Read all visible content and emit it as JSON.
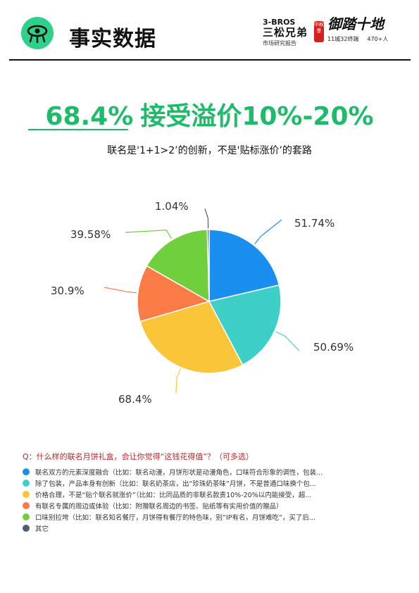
{
  "header": {
    "title": "事实数据",
    "logo_caption": "3BROS LOGO",
    "brand1_line1": "3-BROS",
    "brand1_line2": "三松兄弟",
    "brand1_sub": "市场研究报告",
    "seal_text": "中秋季",
    "brand2_name": "御踏十地",
    "brand2_sub1": "11城32终端",
    "brand2_sub2": "470+人"
  },
  "headline": {
    "number": "68.4%",
    "text": "接受溢价10%-20%"
  },
  "subhead": "联名是'1+1>2’的创新，不是'贴标涨价’的套路",
  "chart_data": {
    "type": "pie",
    "question": "Q：什么样的联名月饼礼盒，会让你觉得“这钱花得值”？（可多选）",
    "series": [
      {
        "name": "联名双方的元素深度融合（比如：联名动漫，月饼形状是动漫角色，口味符合形象的调性，包装...",
        "value": 51.74,
        "label": "51.74%",
        "color": "#1a8ff0"
      },
      {
        "name": "除了包装，产品本身有创新（比如：联名奶茶店，出“珍珠奶茶味”月饼，不是普通口味换个包...",
        "value": 50.69,
        "label": "50.69%",
        "color": "#3ed0c8"
      },
      {
        "name": "价格合理，不是“贴个联名就涨价”（比如：比同品质的非联名款贵10%-20%以内能接受，超...",
        "value": 68.4,
        "label": "68.4%",
        "color": "#fbc53a"
      },
      {
        "name": "有联名专属的周边或体验（比如：附赠联名周边的书签、贴纸等有实用价值的赠品）",
        "value": 30.9,
        "label": "30.9%",
        "color": "#fb7b47"
      },
      {
        "name": "口味别拉垮（比如：联名知名餐厅，月饼得有餐厅的特色味，别“IP有名，月饼难吃”，买了后...",
        "value": 39.58,
        "label": "39.58%",
        "color": "#6fcf3c"
      },
      {
        "name": "其它",
        "value": 1.04,
        "label": "1.04%",
        "color": "#4a5f73"
      }
    ]
  }
}
